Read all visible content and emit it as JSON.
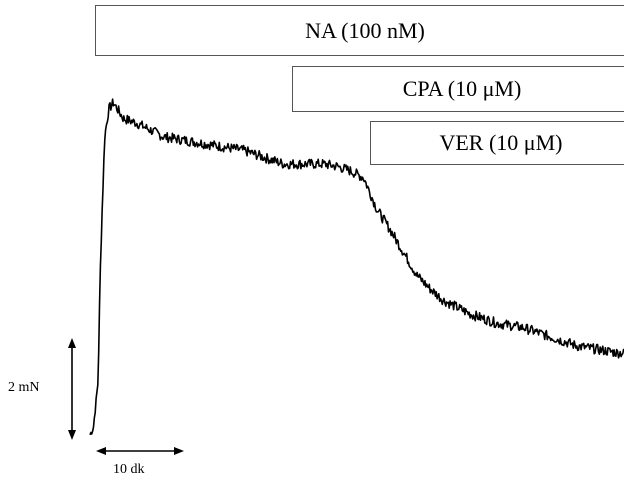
{
  "chart_data": {
    "type": "line",
    "treatments": [
      {
        "label": "NA (100 nM)"
      },
      {
        "label": "CPA (10  μM)"
      },
      {
        "label": "VER (10 μM)"
      }
    ],
    "scale_bars": {
      "force_label": "2 mN",
      "time_label": "10 dk"
    },
    "series": [
      {
        "unit_hint": "mN",
        "x": [
          0,
          0.5,
          1.2,
          1.6,
          2.2,
          2.8,
          3.5,
          5,
          7,
          9,
          11,
          13,
          15,
          17,
          19,
          21,
          23,
          25,
          27,
          29,
          31,
          33,
          35,
          37,
          39,
          41,
          43,
          45,
          47,
          49,
          51,
          53,
          55,
          57,
          59,
          61,
          63,
          65,
          67,
          69,
          71,
          73,
          75,
          77,
          79,
          80
        ],
        "y": [
          0.05,
          0.2,
          1.2,
          4.0,
          6.6,
          7.2,
          7.35,
          7.0,
          6.9,
          6.75,
          6.6,
          6.55,
          6.5,
          6.45,
          6.4,
          6.35,
          6.3,
          6.2,
          6.1,
          6.0,
          6.0,
          6.0,
          6.0,
          5.95,
          5.85,
          5.7,
          5.0,
          4.55,
          4.05,
          3.55,
          3.25,
          3.0,
          2.85,
          2.7,
          2.6,
          2.5,
          2.45,
          2.4,
          2.3,
          2.2,
          2.1,
          2.0,
          1.95,
          1.9,
          1.85,
          1.85
        ]
      }
    ]
  }
}
